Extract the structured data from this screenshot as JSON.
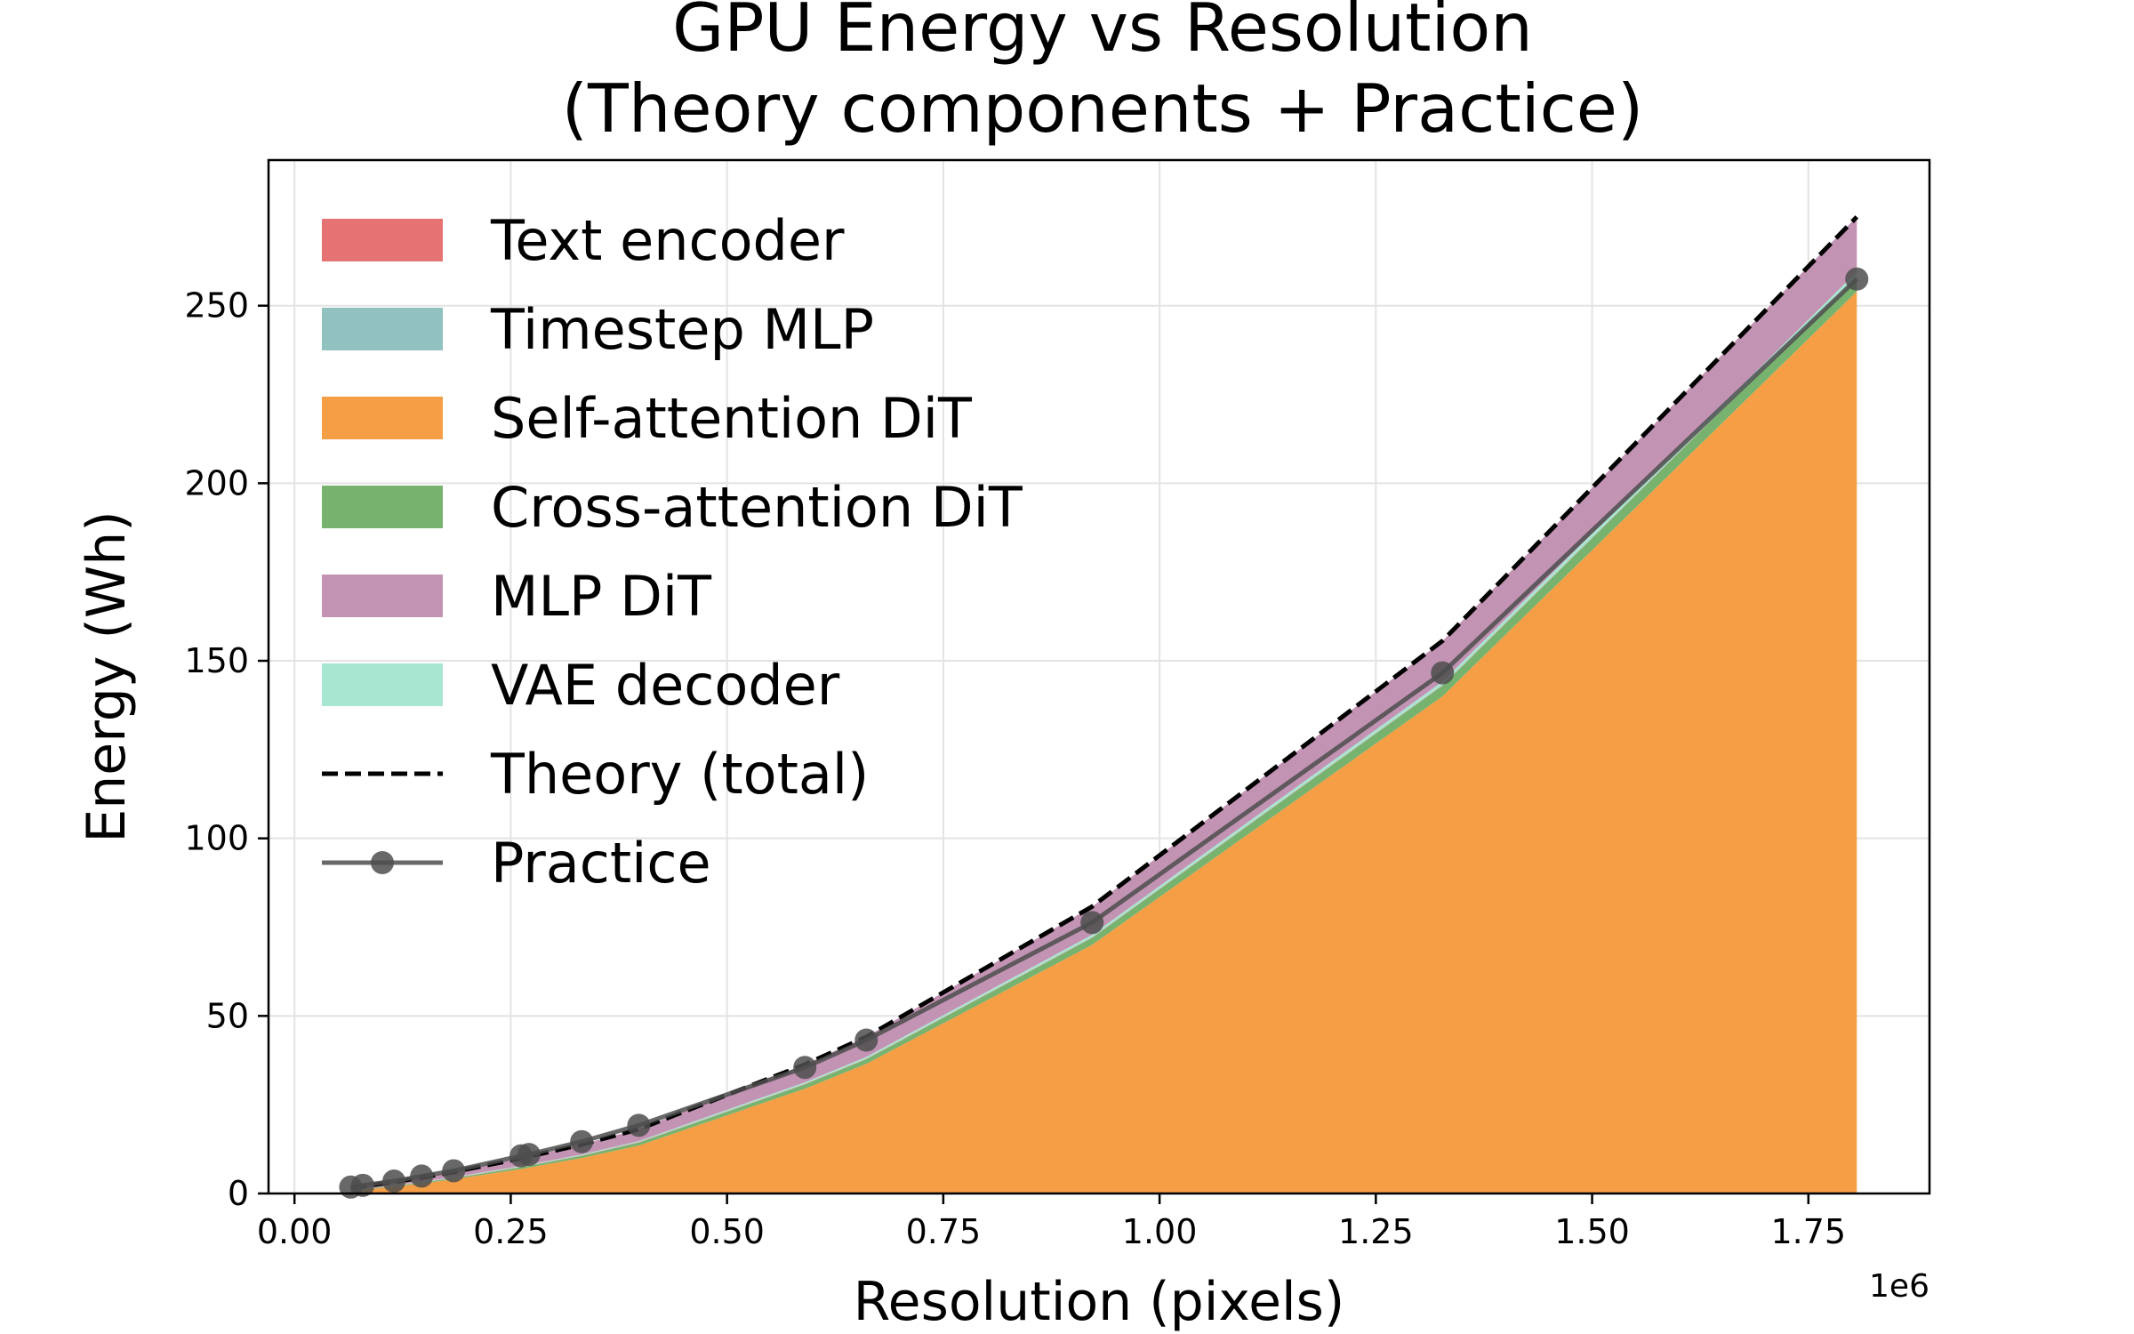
{
  "chart_data": {
    "type": "area",
    "title": [
      "GPU Energy vs Resolution",
      "(Theory components + Practice)"
    ],
    "xlabel": "Resolution (pixels)",
    "ylabel": "Energy (Wh)",
    "x_offset_label": "1e6",
    "xlim": [
      -0.03,
      1.89
    ],
    "ylim": [
      0,
      291
    ],
    "xticks": [
      0.0,
      0.25,
      0.5,
      0.75,
      1.0,
      1.25,
      1.5,
      1.75
    ],
    "xtick_labels": [
      "0.00",
      "0.25",
      "0.50",
      "0.75",
      "1.00",
      "1.25",
      "1.50",
      "1.75"
    ],
    "yticks": [
      0,
      50,
      100,
      150,
      200,
      250
    ],
    "ytick_labels": [
      "0",
      "50",
      "100",
      "150",
      "200",
      "250"
    ],
    "grid": true,
    "legend_position": "upper-left",
    "x": [
      0.065,
      0.079,
      0.115,
      0.147,
      0.184,
      0.262,
      0.271,
      0.332,
      0.398,
      0.59,
      0.661,
      0.922,
      1.327,
      1.806
    ],
    "stacked_series": [
      {
        "name": "Text encoder",
        "color": "#e57373",
        "values": [
          0.1,
          0.1,
          0.1,
          0.1,
          0.1,
          0.1,
          0.1,
          0.1,
          0.1,
          0.1,
          0.1,
          0.1,
          0.1,
          0.1
        ]
      },
      {
        "name": "Timestep MLP",
        "color": "#92c2c0",
        "values": [
          0.05,
          0.05,
          0.05,
          0.05,
          0.05,
          0.05,
          0.05,
          0.05,
          0.05,
          0.05,
          0.05,
          0.05,
          0.05,
          0.05
        ]
      },
      {
        "name": "Self-attention DiT",
        "color": "#f59e45",
        "values": [
          0.7,
          1.0,
          1.9,
          2.8,
          4.0,
          6.9,
          7.3,
          10.0,
          13.5,
          29.5,
          36.5,
          70.0,
          140.0,
          254.0
        ]
      },
      {
        "name": "Cross-attention DiT",
        "color": "#77b36e",
        "values": [
          0.1,
          0.15,
          0.2,
          0.25,
          0.3,
          0.5,
          0.5,
          0.6,
          0.8,
          1.2,
          1.3,
          2.0,
          3.0,
          4.0
        ]
      },
      {
        "name": "MLP DiT",
        "color": "#c393b4",
        "values": [
          0.5,
          0.6,
          0.9,
          1.2,
          1.5,
          2.2,
          2.3,
          2.8,
          3.4,
          5.0,
          5.7,
          7.9,
          11.4,
          15.5
        ]
      },
      {
        "name": "VAE decoder",
        "color": "#a8e6d2",
        "values": [
          0.05,
          0.05,
          0.1,
          0.1,
          0.15,
          0.2,
          0.2,
          0.25,
          0.3,
          0.45,
          0.5,
          0.7,
          1.0,
          1.4
        ]
      }
    ],
    "line_series": [
      {
        "name": "Theory (total)",
        "color": "#000000",
        "style": "dashed",
        "values": [
          1.5,
          2.0,
          3.2,
          4.5,
          6.1,
          9.9,
          10.4,
          13.8,
          18.1,
          36.3,
          44.1,
          80.8,
          155.6,
          275.0
        ]
      },
      {
        "name": "Practice",
        "color": "#4d4d4d",
        "style": "solid-marker",
        "values": [
          1.8,
          2.3,
          3.5,
          4.9,
          6.4,
          10.6,
          11.0,
          14.6,
          19.2,
          35.5,
          43.2,
          76.3,
          146.6,
          257.5
        ]
      }
    ]
  }
}
